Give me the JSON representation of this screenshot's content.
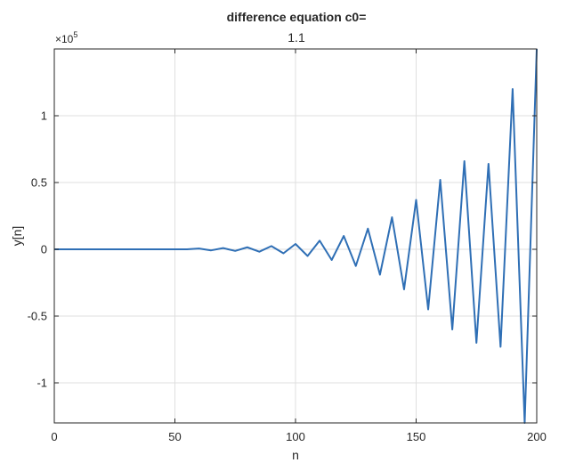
{
  "chart_data": {
    "type": "line",
    "title": "difference equation c0=",
    "subtitle": "1.1",
    "xlabel": "n",
    "ylabel": "y[n]",
    "xlim": [
      0,
      200
    ],
    "ylim": [
      -130000,
      150000
    ],
    "y_exponent_label": "×10",
    "y_exponent_power": "5",
    "grid": true,
    "line_color": "#2f6fb5",
    "x_ticks": [
      {
        "value": 0,
        "label": "0"
      },
      {
        "value": 50,
        "label": "50"
      },
      {
        "value": 100,
        "label": "100"
      },
      {
        "value": 150,
        "label": "150"
      },
      {
        "value": 200,
        "label": "200"
      }
    ],
    "y_ticks": [
      {
        "value": -100000,
        "label": "-1"
      },
      {
        "value": -50000,
        "label": "-0.5"
      },
      {
        "value": 0,
        "label": "0"
      },
      {
        "value": 50000,
        "label": "0.5"
      },
      {
        "value": 100000,
        "label": "1"
      }
    ],
    "series": [
      {
        "x": [
          0,
          10,
          20,
          30,
          40,
          50,
          55,
          60,
          65,
          70,
          75,
          80,
          85,
          90,
          95,
          100,
          105,
          110,
          115,
          120,
          125,
          130,
          135,
          140,
          145,
          150,
          155,
          160,
          165,
          170,
          175,
          180,
          185,
          190,
          195,
          200
        ],
        "y": [
          0,
          0,
          0,
          0,
          0,
          0,
          0,
          600,
          -800,
          900,
          -1200,
          1500,
          -1800,
          2400,
          -3000,
          4000,
          -5000,
          6500,
          -8000,
          10000,
          -12500,
          15500,
          -19000,
          24000,
          -30000,
          37000,
          -45000,
          52000,
          -60000,
          66000,
          -70000,
          64000,
          -73000,
          120000,
          -130000,
          150000
        ]
      }
    ]
  }
}
